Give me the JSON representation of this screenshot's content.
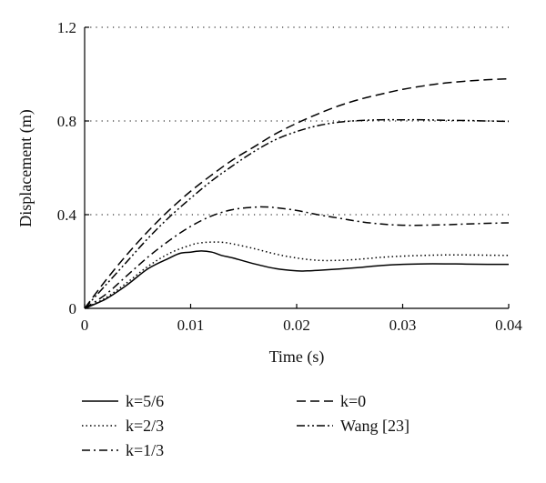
{
  "chart_data": {
    "type": "line",
    "title": "",
    "xlabel": "Time (s)",
    "ylabel": "Displacement (m)",
    "xlim": [
      0,
      0.04
    ],
    "ylim": [
      0,
      1.2
    ],
    "xticks": [
      0,
      0.01,
      0.02,
      0.03,
      0.04
    ],
    "xtick_labels": [
      "0",
      "0.01",
      "0.02",
      "0.03",
      "0.04"
    ],
    "yticks": [
      0,
      0.4,
      0.8,
      1.2
    ],
    "ytick_labels": [
      "0",
      "0.4",
      "0.8",
      "1.2"
    ],
    "grid": "horizontal dotted lines at y ticks",
    "legend_position": "bottom",
    "series": [
      {
        "name": "k=5/6",
        "style": "solid",
        "x": [
          0,
          0.002,
          0.004,
          0.006,
          0.008,
          0.009,
          0.01,
          0.011,
          0.012,
          0.013,
          0.014,
          0.016,
          0.018,
          0.02,
          0.021,
          0.022,
          0.024,
          0.026,
          0.028,
          0.03,
          0.032,
          0.034,
          0.036,
          0.038,
          0.04
        ],
        "y": [
          0,
          0.04,
          0.1,
          0.17,
          0.215,
          0.235,
          0.24,
          0.245,
          0.24,
          0.225,
          0.215,
          0.19,
          0.17,
          0.16,
          0.16,
          0.162,
          0.168,
          0.175,
          0.183,
          0.188,
          0.19,
          0.19,
          0.189,
          0.188,
          0.188
        ]
      },
      {
        "name": "k=2/3",
        "style": "dotted",
        "x": [
          0,
          0.002,
          0.004,
          0.006,
          0.008,
          0.01,
          0.011,
          0.012,
          0.013,
          0.014,
          0.016,
          0.018,
          0.02,
          0.022,
          0.024,
          0.026,
          0.028,
          0.03,
          0.032,
          0.034,
          0.036,
          0.038,
          0.04
        ],
        "y": [
          0,
          0.045,
          0.11,
          0.18,
          0.235,
          0.27,
          0.28,
          0.283,
          0.282,
          0.275,
          0.255,
          0.232,
          0.215,
          0.205,
          0.205,
          0.21,
          0.218,
          0.223,
          0.226,
          0.228,
          0.228,
          0.227,
          0.226
        ]
      },
      {
        "name": "k=1/3",
        "style": "dashdot",
        "x": [
          0,
          0.002,
          0.004,
          0.006,
          0.008,
          0.01,
          0.012,
          0.014,
          0.016,
          0.017,
          0.018,
          0.02,
          0.022,
          0.024,
          0.026,
          0.028,
          0.03,
          0.032,
          0.034,
          0.036,
          0.038,
          0.04
        ],
        "y": [
          0,
          0.06,
          0.14,
          0.22,
          0.29,
          0.35,
          0.395,
          0.422,
          0.432,
          0.433,
          0.43,
          0.418,
          0.4,
          0.385,
          0.37,
          0.36,
          0.355,
          0.355,
          0.357,
          0.36,
          0.363,
          0.365
        ]
      },
      {
        "name": "k=0",
        "style": "dashed",
        "x": [
          0,
          0.002,
          0.004,
          0.006,
          0.008,
          0.01,
          0.012,
          0.014,
          0.016,
          0.018,
          0.02,
          0.022,
          0.024,
          0.026,
          0.028,
          0.03,
          0.032,
          0.034,
          0.036,
          0.038,
          0.04
        ],
        "y": [
          0,
          0.12,
          0.23,
          0.33,
          0.42,
          0.5,
          0.57,
          0.635,
          0.69,
          0.745,
          0.79,
          0.83,
          0.865,
          0.893,
          0.915,
          0.935,
          0.95,
          0.962,
          0.97,
          0.976,
          0.98
        ]
      },
      {
        "name": "Wang [23]",
        "style": "dashdotdot",
        "x": [
          0,
          0.002,
          0.004,
          0.006,
          0.008,
          0.01,
          0.012,
          0.014,
          0.016,
          0.018,
          0.02,
          0.022,
          0.024,
          0.026,
          0.028,
          0.03,
          0.032,
          0.034,
          0.036,
          0.038,
          0.04
        ],
        "y": [
          0,
          0.1,
          0.2,
          0.3,
          0.39,
          0.47,
          0.545,
          0.61,
          0.67,
          0.72,
          0.755,
          0.78,
          0.795,
          0.802,
          0.805,
          0.805,
          0.805,
          0.803,
          0.802,
          0.8,
          0.798
        ]
      }
    ]
  }
}
